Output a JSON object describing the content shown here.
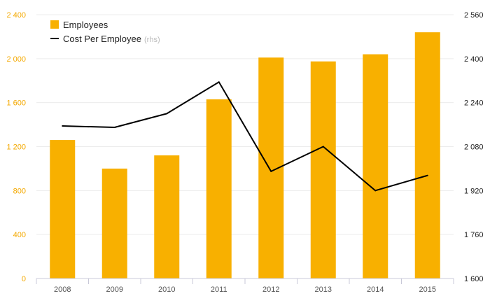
{
  "chart_data": {
    "type": "bar+line",
    "categories": [
      "2008",
      "2009",
      "2010",
      "2011",
      "2012",
      "2013",
      "2014",
      "2015"
    ],
    "series": [
      {
        "name": "Employees",
        "type": "bar",
        "axis": "left",
        "color": "#f8b000",
        "values": [
          1260,
          1000,
          1120,
          1630,
          2010,
          1975,
          2040,
          2240
        ]
      },
      {
        "name": "Cost Per Employee",
        "axis_note": "(rhs)",
        "type": "line",
        "axis": "right",
        "color": "#000000",
        "values": [
          2155,
          2150,
          2200,
          2315,
          1990,
          2080,
          1920,
          1975
        ]
      }
    ],
    "left_axis": {
      "ylim": [
        0,
        2400
      ],
      "ticks": [
        "0",
        "400",
        "800",
        "1 200",
        "1 600",
        "2 000",
        "2 400"
      ],
      "color": "#f4a900"
    },
    "right_axis": {
      "ylim": [
        1600,
        2560
      ],
      "ticks": [
        "1 600",
        "1 760",
        "1 920",
        "2 080",
        "2 240",
        "2 400",
        "2 560"
      ],
      "color": "#222222"
    },
    "grid": true,
    "legend_position": "top-left"
  }
}
